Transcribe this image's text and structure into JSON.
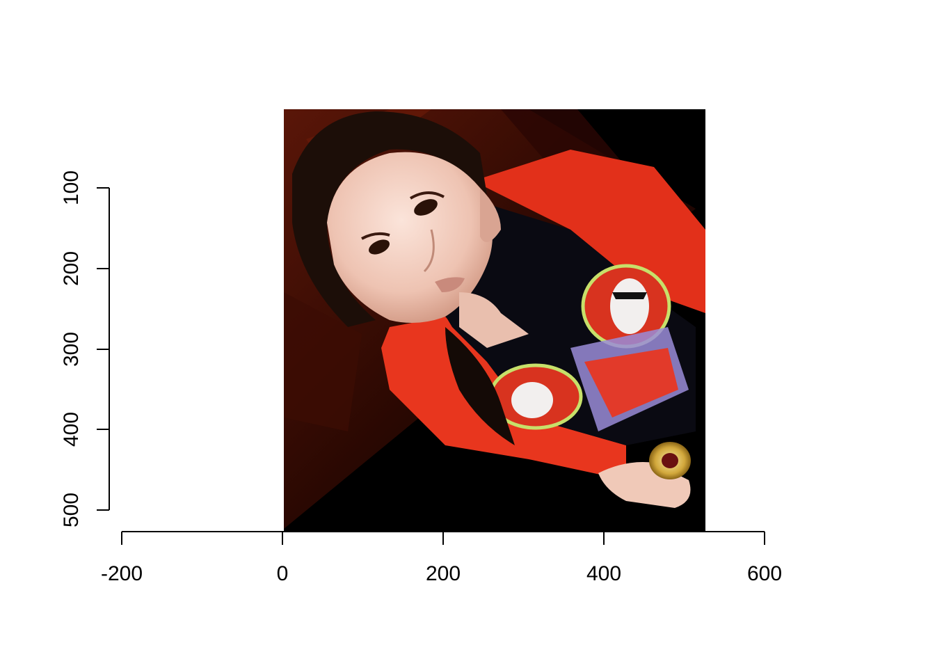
{
  "image": {
    "subject": "photo-of-person",
    "palette": {
      "cardigan": "#e8321c",
      "background": "#000000",
      "wood": "#3a0d05",
      "skin": "#f1cdbf"
    }
  },
  "axes": {
    "x_ticks": [
      "-200",
      "0",
      "200",
      "400",
      "600"
    ],
    "y_ticks": [
      "100",
      "200",
      "300",
      "400",
      "500"
    ]
  }
}
